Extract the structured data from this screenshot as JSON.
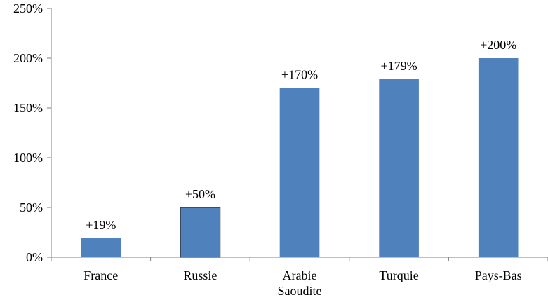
{
  "chart_data": {
    "type": "bar",
    "categories": [
      [
        "France"
      ],
      [
        "Russie"
      ],
      [
        "Arabie",
        "Saoudite"
      ],
      [
        "Turquie"
      ],
      [
        "Pays-Bas"
      ]
    ],
    "values": [
      19,
      50,
      170,
      179,
      200
    ],
    "data_labels": [
      "+19%",
      "+50%",
      "+170%",
      "+179%",
      "+200%"
    ],
    "y_ticks": [
      0,
      50,
      100,
      150,
      200,
      250
    ],
    "y_tick_labels": [
      "0%",
      "50%",
      "100%",
      "150%",
      "200%",
      "250%"
    ],
    "ylim": [
      0,
      250
    ],
    "title": "",
    "xlabel": "",
    "ylabel": "",
    "grid": false,
    "legend": "none",
    "colors": {
      "bar_fill": "#4f81bd",
      "bar_stroke_highlight": "#1f1f1f",
      "axis": "#7f7f7f",
      "text": "#000000"
    },
    "highlighted_bar_index": 1
  }
}
